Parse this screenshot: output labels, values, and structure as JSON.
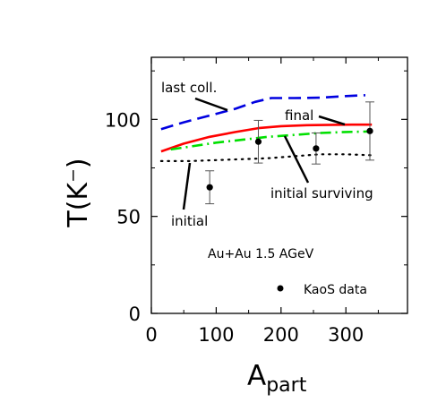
{
  "chart_data": {
    "type": "line",
    "ylabel": "T(K⁻)",
    "xlabel_main": "A",
    "xlabel_sub": "part",
    "xlim": [
      0,
      395
    ],
    "ylim": [
      0,
      132
    ],
    "x_ticks": [
      0,
      100,
      200,
      300
    ],
    "y_ticks": [
      0,
      50,
      100
    ],
    "x_tick_labels": [
      "0",
      "100",
      "200",
      "300"
    ],
    "y_tick_labels": [
      "0",
      "50",
      "100"
    ],
    "annotation": "Au+Au  1.5 AGeV",
    "legend_label": "KaoS data",
    "grid": false,
    "series": [
      {
        "name": "last coll.",
        "style": "dashed",
        "color": "#0000e0",
        "x": [
          15,
          50,
          90,
          130,
          160,
          185,
          220,
          260,
          300,
          330
        ],
        "y": [
          95,
          98.5,
          102,
          105.5,
          109,
          111,
          111,
          111.2,
          112,
          112.5
        ]
      },
      {
        "name": "final",
        "style": "solid",
        "color": "#ff0000",
        "x": [
          15,
          50,
          90,
          130,
          165,
          200,
          240,
          280,
          310,
          340
        ],
        "y": [
          83.5,
          87.5,
          91,
          93.5,
          95.5,
          96.5,
          97,
          97.2,
          97.3,
          97.3
        ]
      },
      {
        "name": "initial surviving",
        "style": "dashdot",
        "color": "#00e000",
        "x": [
          30,
          60,
          100,
          140,
          180,
          220,
          260,
          300,
          340
        ],
        "y": [
          84.5,
          86,
          88,
          89.5,
          91,
          92,
          93,
          93.5,
          93.8
        ]
      },
      {
        "name": "initial",
        "style": "dotted",
        "color": "#000000",
        "x": [
          15,
          60,
          100,
          140,
          180,
          220,
          260,
          300,
          340
        ],
        "y": [
          78.5,
          78.5,
          79,
          79.5,
          80,
          81,
          82,
          82,
          81.5
        ]
      }
    ],
    "data_points": [
      {
        "x": 90,
        "y": 65,
        "err": 8.5
      },
      {
        "x": 165,
        "y": 88.5,
        "err": 11
      },
      {
        "x": 254,
        "y": 85,
        "err": 8
      },
      {
        "x": 337,
        "y": 94,
        "err": 15
      }
    ],
    "curve_labels": [
      {
        "text": "last coll.",
        "series": 0
      },
      {
        "text": "final",
        "series": 1
      },
      {
        "text": "initial surviving",
        "series": 2
      },
      {
        "text": "initial",
        "series": 3
      }
    ]
  }
}
